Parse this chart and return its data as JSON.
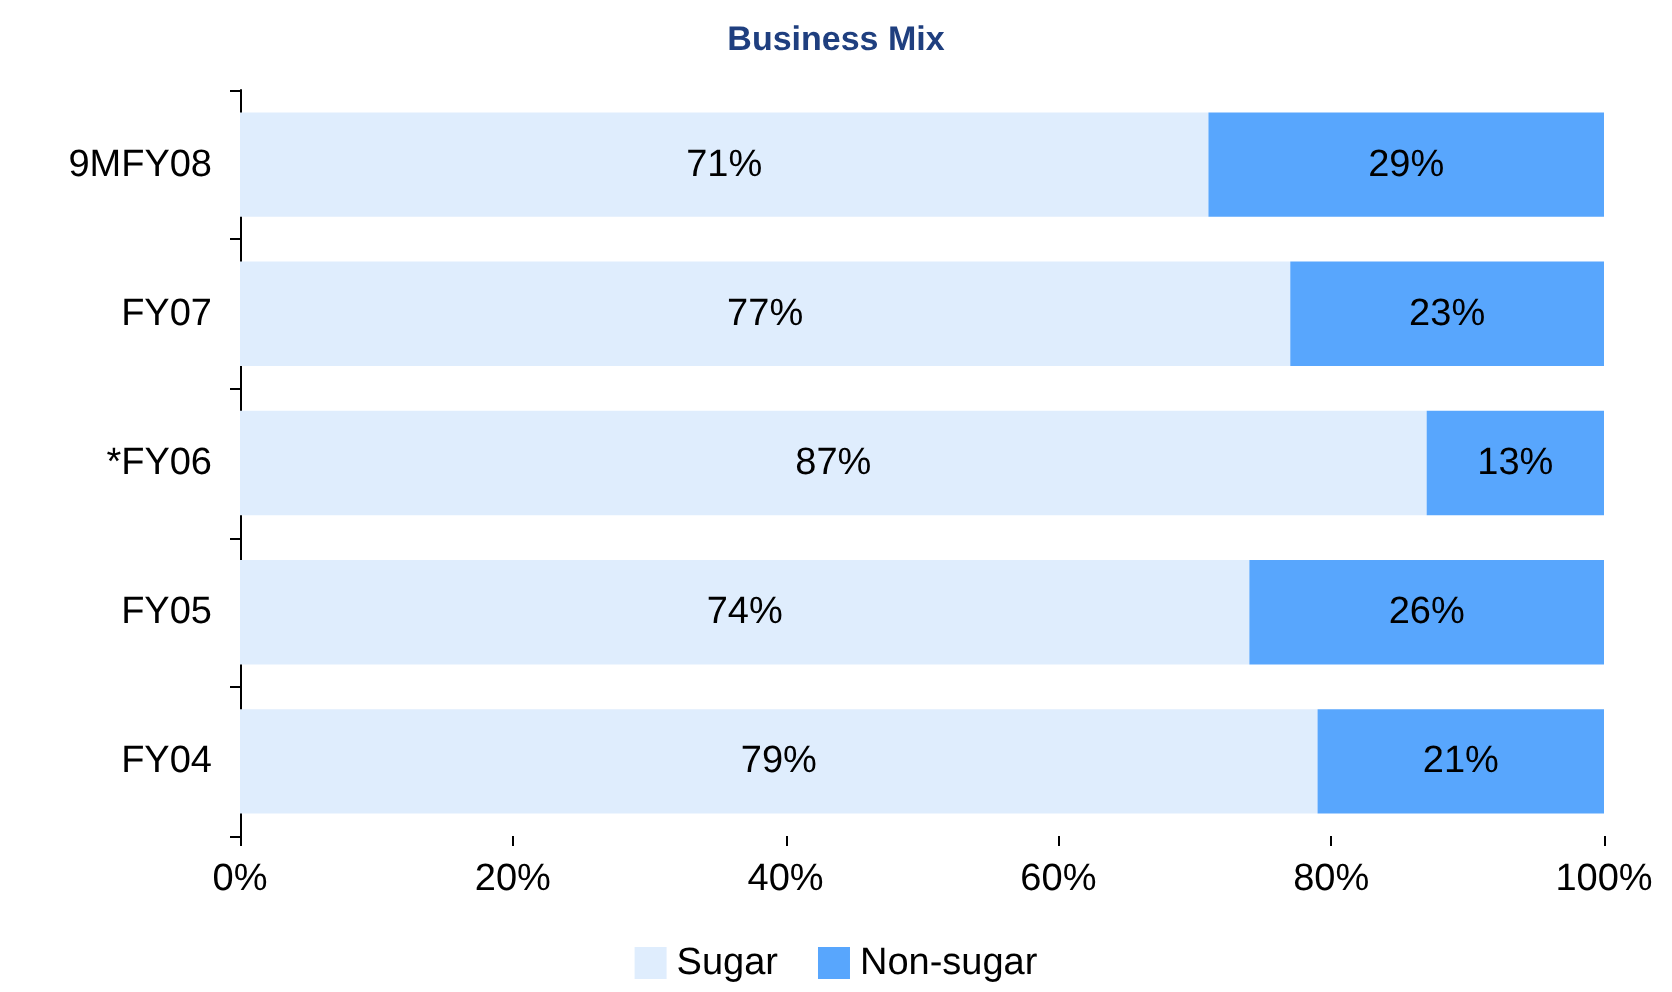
{
  "chart_data": {
    "type": "bar",
    "orientation": "horizontal",
    "stacked": true,
    "title": "Business Mix",
    "categories": [
      "9MFY08",
      "FY07",
      "*FY06",
      "FY05",
      "FY04"
    ],
    "series": [
      {
        "name": "Sugar",
        "color": "#dfedfd",
        "values": [
          71,
          77,
          87,
          74,
          79
        ],
        "value_labels": [
          "71%",
          "77%",
          "87%",
          "74%",
          "79%"
        ]
      },
      {
        "name": "Non-sugar",
        "color": "#58a6fd",
        "values": [
          29,
          23,
          13,
          26,
          21
        ],
        "value_labels": [
          "29%",
          "23%",
          "13%",
          "26%",
          "21%"
        ]
      }
    ],
    "xlim": [
      0,
      100
    ],
    "xticks": [
      {
        "value": 0,
        "label": "0%"
      },
      {
        "value": 20,
        "label": "20%"
      },
      {
        "value": 40,
        "label": "40%"
      },
      {
        "value": 60,
        "label": "60%"
      },
      {
        "value": 80,
        "label": "80%"
      },
      {
        "value": 100,
        "label": "100%"
      }
    ],
    "grid": false,
    "legend": "bottom"
  }
}
